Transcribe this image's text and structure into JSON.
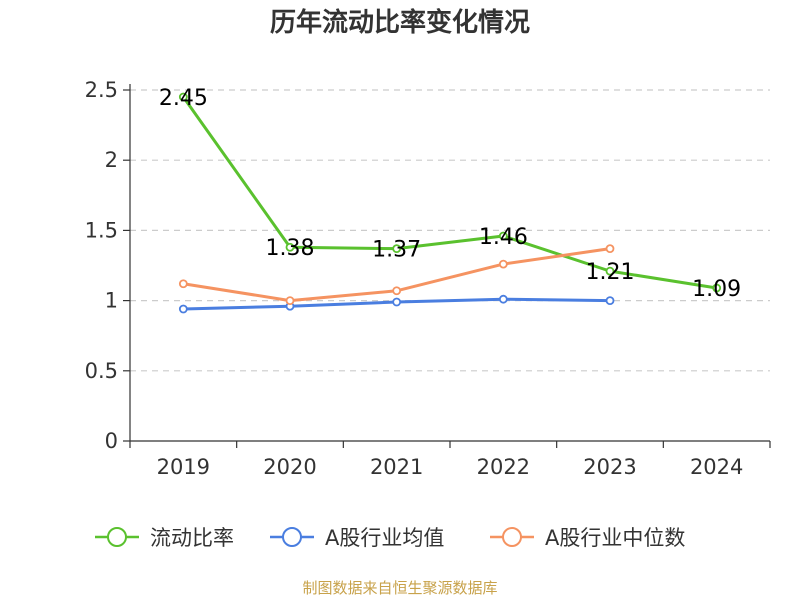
{
  "chart_data": {
    "type": "line",
    "title": "历年流动比率变化情况",
    "categories": [
      "2019",
      "2020",
      "2021",
      "2022",
      "2023",
      "2024"
    ],
    "ylim": [
      0,
      2.5
    ],
    "yticks": [
      "0",
      "0.5",
      "1",
      "1.5",
      "2",
      "2.5"
    ],
    "grid": true,
    "legend_position": "bottom",
    "series": [
      {
        "name": "流动比率",
        "color": "#5ac12e",
        "values": [
          2.45,
          1.38,
          1.37,
          1.46,
          1.21,
          1.09
        ],
        "labels": [
          "2.45",
          "1.38",
          "1.37",
          "1.46",
          "1.21",
          "1.09"
        ],
        "show_labels": true
      },
      {
        "name": "A股行业均值",
        "color": "#4a7ee0",
        "values": [
          0.94,
          0.96,
          0.99,
          1.01,
          1.0,
          null
        ],
        "show_labels": false
      },
      {
        "name": "A股行业中位数",
        "color": "#f59361",
        "values": [
          1.12,
          1.0,
          1.07,
          1.26,
          1.37,
          null
        ],
        "show_labels": false
      }
    ]
  },
  "footer": {
    "source": "制图数据来自恒生聚源数据库"
  }
}
